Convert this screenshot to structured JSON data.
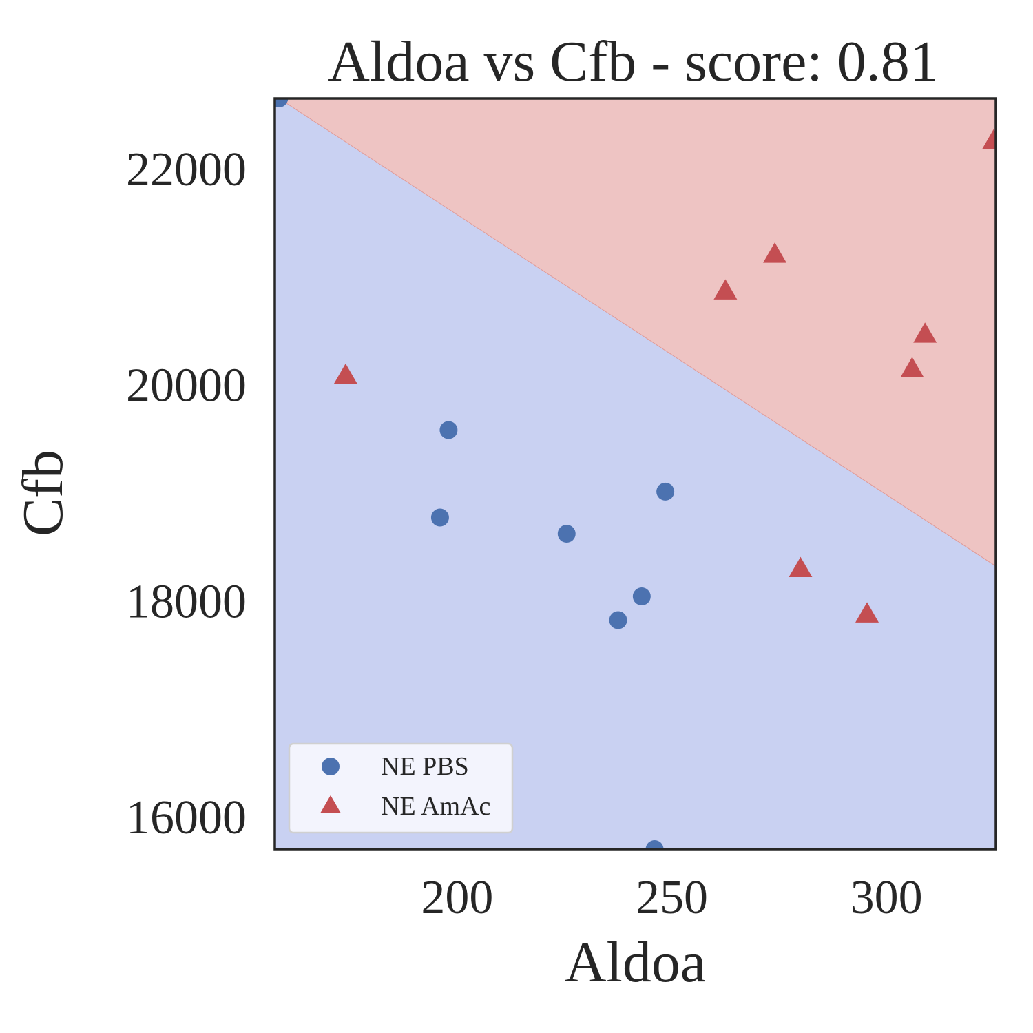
{
  "chart_data": {
    "type": "scatter",
    "title": "Aldoa vs Cfb - score: 0.81",
    "xlabel": "Aldoa",
    "ylabel": "Cfb",
    "xlim": [
      157.5,
      325.5
    ],
    "ylim": [
      15700,
      22650
    ],
    "xticks": [
      200,
      250,
      300
    ],
    "yticks": [
      16000,
      18000,
      20000,
      22000
    ],
    "grid": false,
    "legend_position": "lower-left",
    "decision_boundary": {
      "points": [
        [
          158.5,
          22650
        ],
        [
          325.5,
          18320
        ]
      ],
      "upper_region_color": "#eec4c3",
      "lower_region_color": "#c9d1f2"
    },
    "series": [
      {
        "name": "NE PBS",
        "marker": "circle",
        "color": "#4c72b0",
        "points": [
          [
            158.5,
            22650
          ],
          [
            198,
            19580
          ],
          [
            196,
            18770
          ],
          [
            225.5,
            18620
          ],
          [
            248.5,
            19010
          ],
          [
            243,
            18040
          ],
          [
            237.5,
            17820
          ],
          [
            246,
            15700
          ]
        ]
      },
      {
        "name": "NE AmAc",
        "marker": "triangle",
        "color": "#c44e52",
        "points": [
          [
            174,
            20080
          ],
          [
            262.5,
            20860
          ],
          [
            274,
            21200
          ],
          [
            309,
            20460
          ],
          [
            306,
            20140
          ],
          [
            280,
            18290
          ],
          [
            295.5,
            17870
          ],
          [
            325,
            22250
          ]
        ]
      }
    ]
  }
}
